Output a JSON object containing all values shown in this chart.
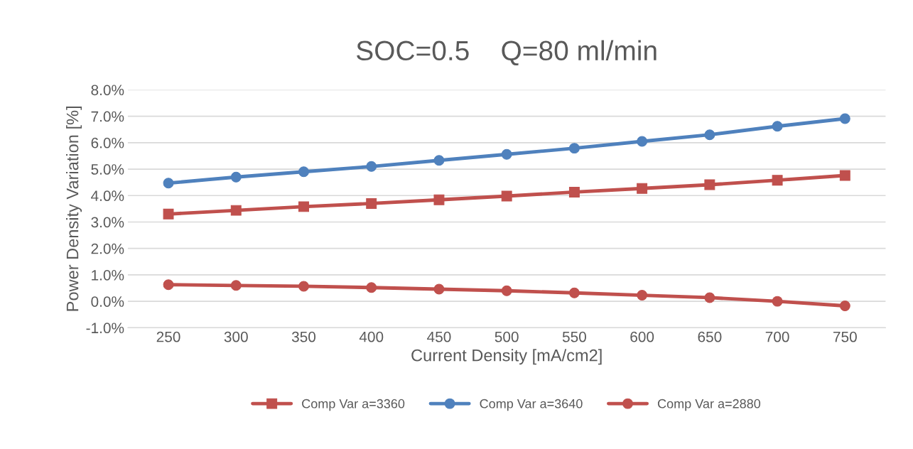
{
  "chart_data": {
    "type": "line",
    "title": "SOC=0.5    Q=80 ml/min",
    "xlabel": "Current Density [mA/cm2]",
    "ylabel": "Power Density Variation [%]",
    "categories": [
      "250",
      "300",
      "350",
      "400",
      "450",
      "500",
      "550",
      "600",
      "650",
      "700",
      "750"
    ],
    "series": [
      {
        "name": "Comp Var a=3360",
        "color": "#c0504d",
        "marker": "square",
        "values": [
          3.3,
          3.44,
          3.58,
          3.7,
          3.84,
          3.98,
          4.13,
          4.27,
          4.41,
          4.58,
          4.76
        ]
      },
      {
        "name": "Comp Var a=3640",
        "color": "#4f81bd",
        "marker": "circle",
        "values": [
          4.47,
          4.7,
          4.9,
          5.1,
          5.33,
          5.56,
          5.79,
          6.05,
          6.3,
          6.62,
          6.91
        ]
      },
      {
        "name": "Comp Var a=2880",
        "color": "#c0504d",
        "marker": "circle",
        "values": [
          0.63,
          0.6,
          0.57,
          0.52,
          0.46,
          0.4,
          0.32,
          0.23,
          0.14,
          0.0,
          -0.17
        ]
      }
    ],
    "ylim": [
      -1,
      8
    ],
    "yticks": [
      {
        "value": -1,
        "label": "-1.0%"
      },
      {
        "value": 0,
        "label": "0.0%"
      },
      {
        "value": 1,
        "label": "1.0%"
      },
      {
        "value": 2,
        "label": "2.0%"
      },
      {
        "value": 3,
        "label": "3.0%"
      },
      {
        "value": 4,
        "label": "4.0%"
      },
      {
        "value": 5,
        "label": "5.0%"
      },
      {
        "value": 6,
        "label": "6.0%"
      },
      {
        "value": 7,
        "label": "7.0%"
      },
      {
        "value": 8,
        "label": "8.0%"
      }
    ],
    "grid": "y",
    "legend": "bottom",
    "line_style": "solid"
  }
}
